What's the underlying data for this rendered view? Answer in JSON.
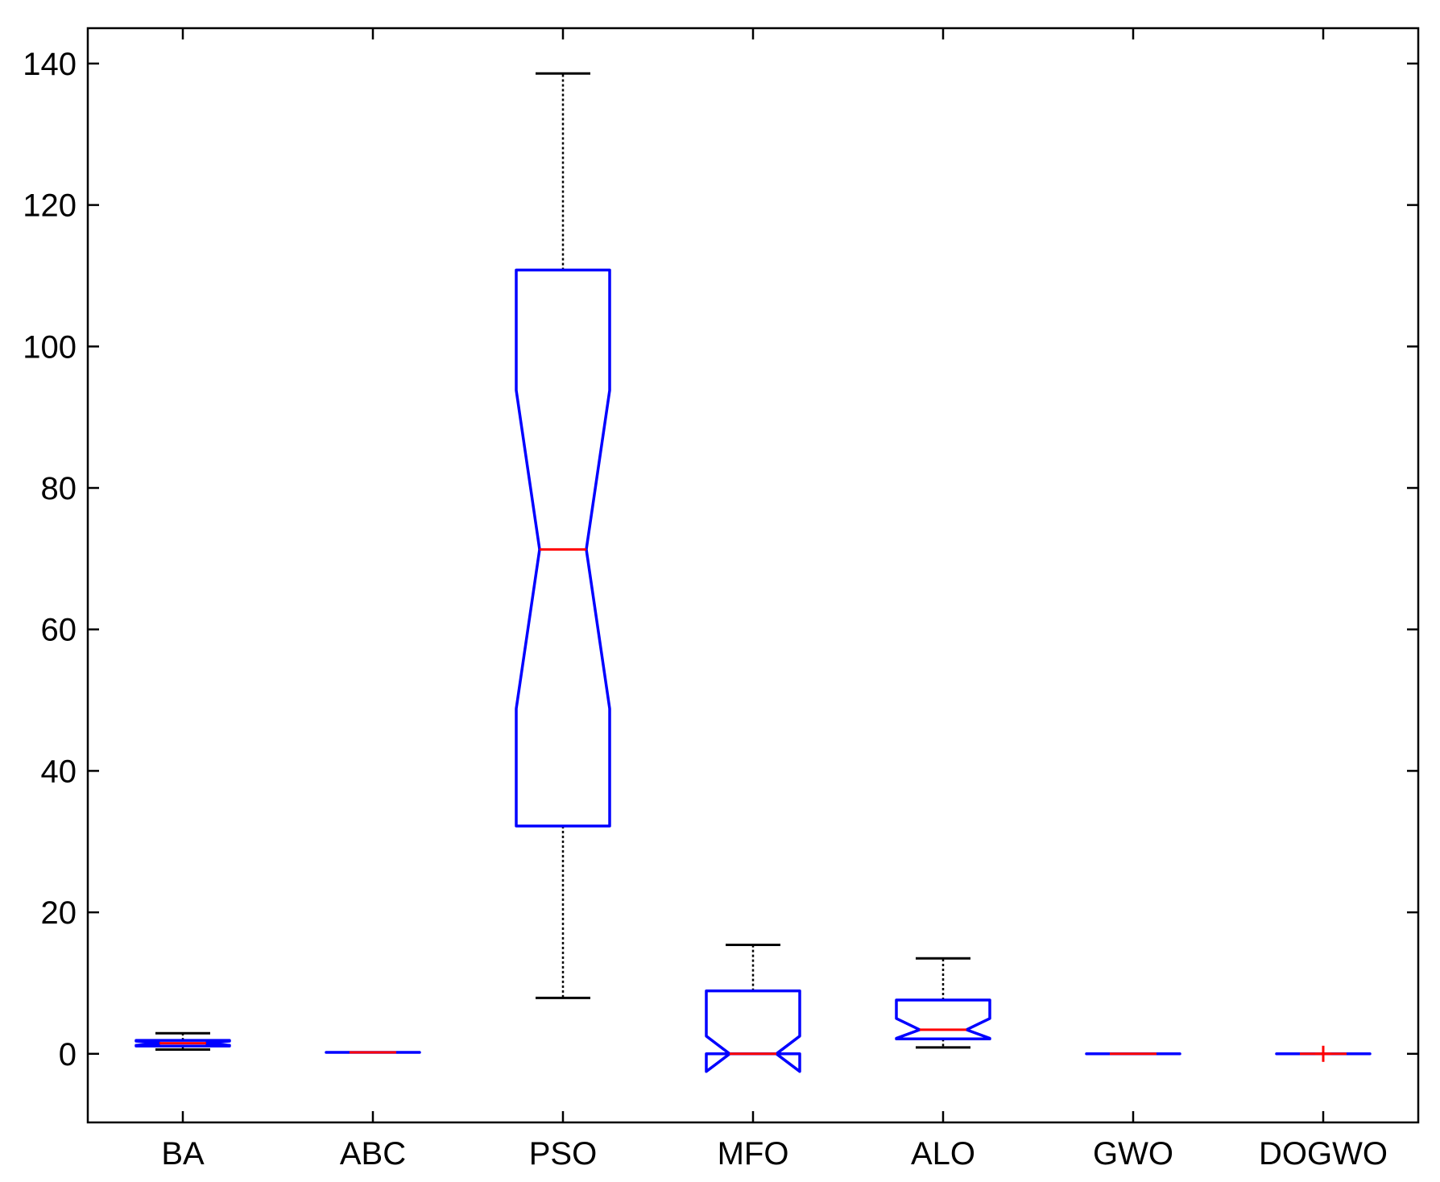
{
  "chart_data": {
    "type": "box",
    "categories": [
      "BA",
      "ABC",
      "PSO",
      "MFO",
      "ALO",
      "GWO",
      "DOGWO"
    ],
    "boxes": [
      {
        "name": "BA",
        "whisker_low": 0.6,
        "q1": 1.1,
        "median": 1.5,
        "q3": 1.9,
        "whisker_high": 2.9,
        "notch_low": 1.2,
        "notch_high": 1.8,
        "outliers": []
      },
      {
        "name": "ABC",
        "whisker_low": 0.2,
        "q1": 0.2,
        "median": 0.2,
        "q3": 0.2,
        "whisker_high": 0.2,
        "notch_low": 0.2,
        "notch_high": 0.2,
        "outliers": []
      },
      {
        "name": "PSO",
        "whisker_low": 7.9,
        "q1": 32.2,
        "median": 71.3,
        "q3": 110.8,
        "whisker_high": 138.6,
        "notch_low": 48.8,
        "notch_high": 93.8,
        "outliers": []
      },
      {
        "name": "MFO",
        "whisker_low": 0.0,
        "q1": 0.0,
        "median": 0.0,
        "q3": 8.9,
        "whisker_high": 15.4,
        "notch_low": -2.5,
        "notch_high": 2.5,
        "outliers": []
      },
      {
        "name": "ALO",
        "whisker_low": 0.9,
        "q1": 2.1,
        "median": 3.4,
        "q3": 7.6,
        "whisker_high": 13.5,
        "notch_low": 2.2,
        "notch_high": 5.0,
        "outliers": []
      },
      {
        "name": "GWO",
        "whisker_low": 0.0,
        "q1": 0.0,
        "median": 0.0,
        "q3": 0.0,
        "whisker_high": 0.0,
        "notch_low": 0.0,
        "notch_high": 0.0,
        "outliers": []
      },
      {
        "name": "DOGWO",
        "whisker_low": 0.0,
        "q1": 0.0,
        "median": 0.0,
        "q3": 0.0,
        "whisker_high": 0.0,
        "notch_low": 0.0,
        "notch_high": 0.0,
        "outliers": [
          0.0
        ]
      }
    ],
    "ylim": [
      -9.7,
      145
    ],
    "yticks": [
      0,
      20,
      40,
      60,
      80,
      100,
      120,
      140
    ],
    "title": "",
    "xlabel": "",
    "ylabel": "",
    "grid": false,
    "colors": {
      "box": "#0000ff",
      "median": "#ff0000",
      "whisker": "#000000",
      "outlier": "#ff0000",
      "axes": "#000000"
    }
  }
}
